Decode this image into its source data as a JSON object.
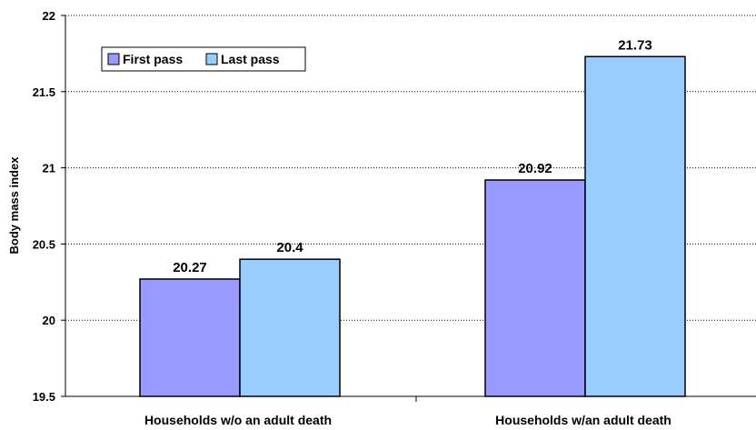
{
  "chart_data": {
    "type": "bar",
    "title": "",
    "xlabel": "",
    "ylabel": "Body mass index",
    "ylim": [
      19.5,
      22
    ],
    "yticks": [
      "19.5",
      "20",
      "20.5",
      "21",
      "21.5",
      "22"
    ],
    "grid": true,
    "legend": "top-left",
    "categories": [
      "Households w/o an adult death",
      "Households w/an adult death"
    ],
    "series": [
      {
        "name": "First pass",
        "values": [
          20.27,
          20.92
        ],
        "labels": [
          "20.27",
          "20.92"
        ],
        "color": "#9999ff"
      },
      {
        "name": "Last pass",
        "values": [
          20.4,
          21.73
        ],
        "labels": [
          "20.4",
          "21.73"
        ],
        "color": "#99ccff"
      }
    ]
  }
}
